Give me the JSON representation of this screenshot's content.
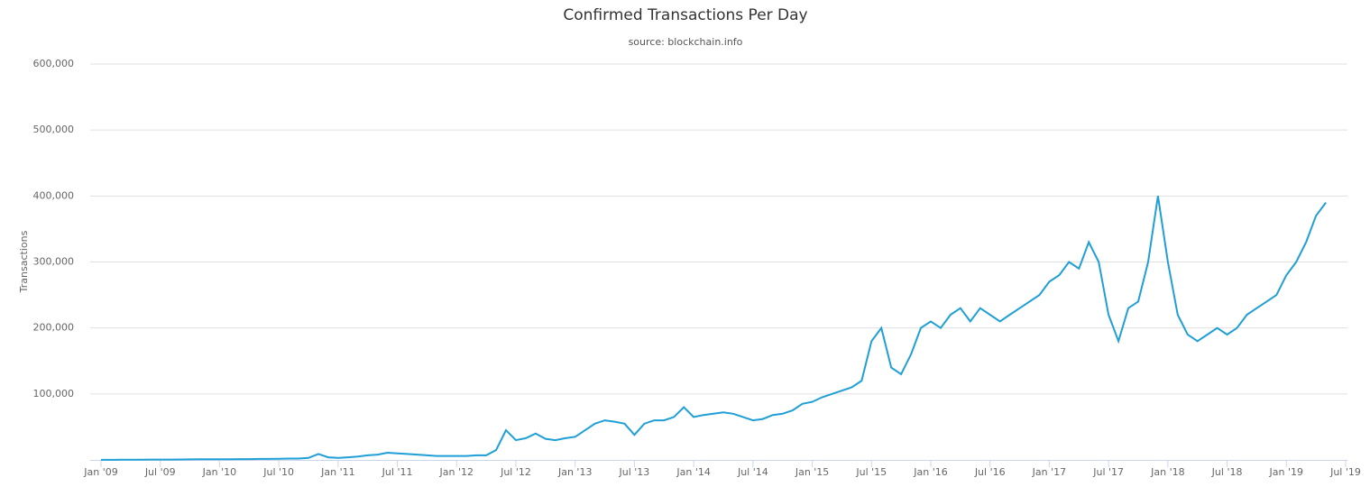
{
  "chart_data": {
    "type": "line",
    "title": "Confirmed Transactions Per Day",
    "subtitle": "source: blockchain.info",
    "y_label": "Transactions",
    "x": [
      "2009-01",
      "2009-02",
      "2009-03",
      "2009-04",
      "2009-05",
      "2009-06",
      "2009-07",
      "2009-08",
      "2009-09",
      "2009-10",
      "2009-11",
      "2009-12",
      "2010-01",
      "2010-02",
      "2010-03",
      "2010-04",
      "2010-05",
      "2010-06",
      "2010-07",
      "2010-08",
      "2010-09",
      "2010-10",
      "2010-11",
      "2010-12",
      "2011-01",
      "2011-02",
      "2011-03",
      "2011-04",
      "2011-05",
      "2011-06",
      "2011-07",
      "2011-08",
      "2011-09",
      "2011-10",
      "2011-11",
      "2011-12",
      "2012-01",
      "2012-02",
      "2012-03",
      "2012-04",
      "2012-05",
      "2012-06",
      "2012-07",
      "2012-08",
      "2012-09",
      "2012-10",
      "2012-11",
      "2012-12",
      "2013-01",
      "2013-02",
      "2013-03",
      "2013-04",
      "2013-05",
      "2013-06",
      "2013-07",
      "2013-08",
      "2013-09",
      "2013-10",
      "2013-11",
      "2013-12",
      "2014-01",
      "2014-02",
      "2014-03",
      "2014-04",
      "2014-05",
      "2014-06",
      "2014-07",
      "2014-08",
      "2014-09",
      "2014-10",
      "2014-11",
      "2014-12",
      "2015-01",
      "2015-02",
      "2015-03",
      "2015-04",
      "2015-05",
      "2015-06",
      "2015-07",
      "2015-08",
      "2015-09",
      "2015-10",
      "2015-11",
      "2015-12",
      "2016-01",
      "2016-02",
      "2016-03",
      "2016-04",
      "2016-05",
      "2016-06",
      "2016-07",
      "2016-08",
      "2016-09",
      "2016-10",
      "2016-11",
      "2016-12",
      "2017-01",
      "2017-02",
      "2017-03",
      "2017-04",
      "2017-05",
      "2017-06",
      "2017-07",
      "2017-08",
      "2017-09",
      "2017-10",
      "2017-11",
      "2017-12",
      "2018-01",
      "2018-02",
      "2018-03",
      "2018-04",
      "2018-05",
      "2018-06",
      "2018-07",
      "2018-08",
      "2018-09",
      "2018-10",
      "2018-11",
      "2018-12",
      "2019-01",
      "2019-02",
      "2019-03",
      "2019-04",
      "2019-05"
    ],
    "series": [
      {
        "name": "Transactions",
        "color": "#1f9fd6",
        "values": [
          100,
          200,
          300,
          400,
          400,
          500,
          500,
          600,
          700,
          800,
          900,
          1000,
          1000,
          1000,
          1200,
          1200,
          1500,
          1500,
          1800,
          2000,
          2000,
          3000,
          9000,
          4000,
          3000,
          4000,
          5000,
          7000,
          8000,
          11000,
          10000,
          9000,
          8000,
          7000,
          6000,
          6000,
          6000,
          6000,
          7000,
          7000,
          15000,
          45000,
          30000,
          33000,
          40000,
          32000,
          30000,
          33000,
          35000,
          45000,
          55000,
          60000,
          58000,
          55000,
          38000,
          55000,
          60000,
          60000,
          65000,
          80000,
          65000,
          68000,
          70000,
          72000,
          70000,
          65000,
          60000,
          62000,
          68000,
          70000,
          75000,
          85000,
          88000,
          95000,
          100000,
          105000,
          110000,
          120000,
          180000,
          200000,
          140000,
          130000,
          160000,
          200000,
          210000,
          200000,
          220000,
          230000,
          210000,
          230000,
          220000,
          210000,
          220000,
          230000,
          240000,
          250000,
          270000,
          280000,
          300000,
          290000,
          330000,
          300000,
          220000,
          180000,
          230000,
          240000,
          300000,
          400000,
          300000,
          220000,
          190000,
          180000,
          190000,
          200000,
          190000,
          200000,
          220000,
          230000,
          240000,
          250000,
          280000,
          300000,
          330000,
          370000,
          390000
        ]
      }
    ],
    "xlim": [
      "2009-01",
      "2019-07"
    ],
    "xticks": [
      {
        "value": "2009-01",
        "label": "Jan '09"
      },
      {
        "value": "2009-07",
        "label": "Jul '09"
      },
      {
        "value": "2010-01",
        "label": "Jan '10"
      },
      {
        "value": "2010-07",
        "label": "Jul '10"
      },
      {
        "value": "2011-01",
        "label": "Jan '11"
      },
      {
        "value": "2011-07",
        "label": "Jul '11"
      },
      {
        "value": "2012-01",
        "label": "Jan '12"
      },
      {
        "value": "2012-07",
        "label": "Jul '12"
      },
      {
        "value": "2013-01",
        "label": "Jan '13"
      },
      {
        "value": "2013-07",
        "label": "Jul '13"
      },
      {
        "value": "2014-01",
        "label": "Jan '14"
      },
      {
        "value": "2014-07",
        "label": "Jul '14"
      },
      {
        "value": "2015-01",
        "label": "Jan '15"
      },
      {
        "value": "2015-07",
        "label": "Jul '15"
      },
      {
        "value": "2016-01",
        "label": "Jan '16"
      },
      {
        "value": "2016-07",
        "label": "Jul '16"
      },
      {
        "value": "2017-01",
        "label": "Jan '17"
      },
      {
        "value": "2017-07",
        "label": "Jul '17"
      },
      {
        "value": "2018-01",
        "label": "Jan '18"
      },
      {
        "value": "2018-07",
        "label": "Jul '18"
      },
      {
        "value": "2019-01",
        "label": "Jan '19"
      },
      {
        "value": "2019-07",
        "label": "Jul '19"
      }
    ],
    "ylim": [
      0,
      600000
    ],
    "yticks": [
      {
        "value": 100000,
        "label": "100,000"
      },
      {
        "value": 200000,
        "label": "200,000"
      },
      {
        "value": 300000,
        "label": "300,000"
      },
      {
        "value": 400000,
        "label": "400,000"
      },
      {
        "value": 500000,
        "label": "500,000"
      },
      {
        "value": 600000,
        "label": "600,000"
      }
    ],
    "grid": true
  }
}
